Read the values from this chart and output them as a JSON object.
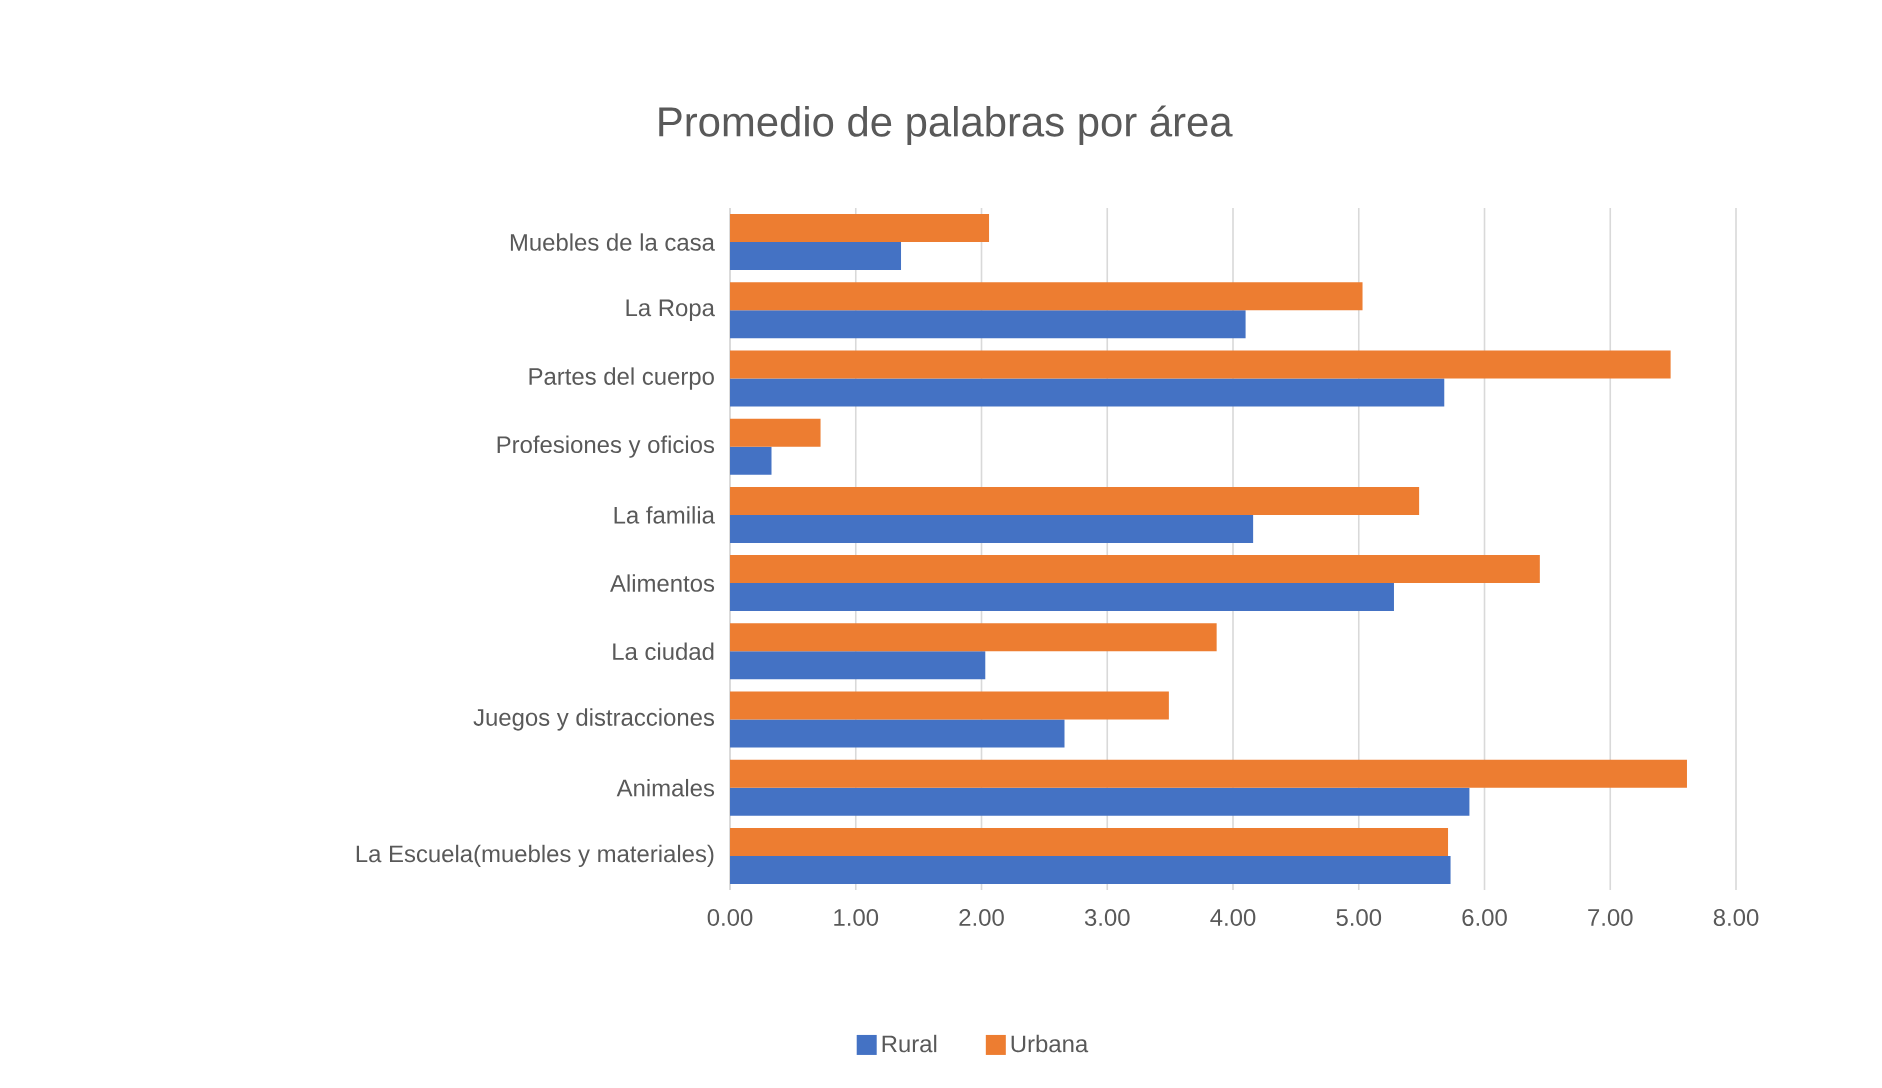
{
  "chart_data": {
    "type": "bar",
    "orientation": "horizontal",
    "title": "Promedio de palabras por área",
    "categories": [
      "Muebles de la casa",
      "La Ropa",
      "Partes del cuerpo",
      "Profesiones y oficios",
      "La familia",
      "Alimentos",
      "La ciudad",
      "Juegos y distracciones",
      "Animales",
      "La Escuela(muebles y materiales)"
    ],
    "series": [
      {
        "name": "Rural",
        "color": "#4472c4",
        "values": [
          1.36,
          4.1,
          5.68,
          0.33,
          4.16,
          5.28,
          2.03,
          2.66,
          5.88,
          5.73
        ]
      },
      {
        "name": "Urbana",
        "color": "#ed7d31",
        "values": [
          2.06,
          5.03,
          7.48,
          0.72,
          5.48,
          6.44,
          3.87,
          3.49,
          7.61,
          5.71
        ]
      }
    ],
    "xlim": [
      0,
      8
    ],
    "xticks": [
      {
        "value": 0,
        "label": "0.00"
      },
      {
        "value": 1,
        "label": "1.00"
      },
      {
        "value": 2,
        "label": "2.00"
      },
      {
        "value": 3,
        "label": "3.00"
      },
      {
        "value": 4,
        "label": "4.00"
      },
      {
        "value": 5,
        "label": "5.00"
      },
      {
        "value": 6,
        "label": "6.00"
      },
      {
        "value": 7,
        "label": "7.00"
      },
      {
        "value": 8,
        "label": "8.00"
      }
    ],
    "grid": "x",
    "legend": "bottom"
  }
}
